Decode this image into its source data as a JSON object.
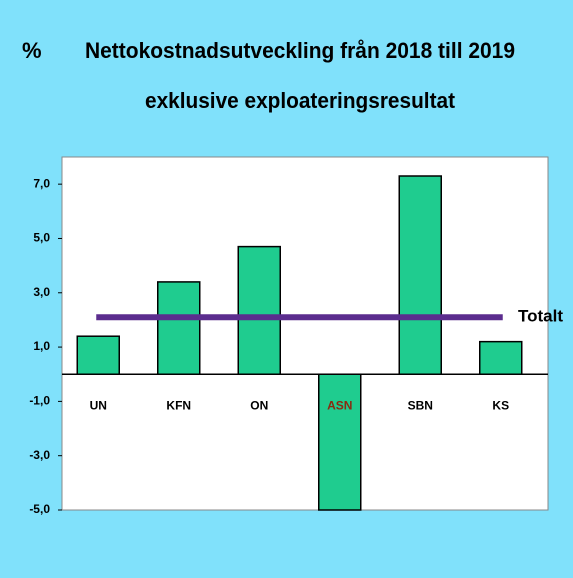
{
  "chart_data": {
    "type": "bar",
    "title": "Nettokostnadsutveckling från 2018 till 2019",
    "subtitle": "exklusive exploateringsresultat",
    "y_label": "%",
    "categories": [
      "UN",
      "KFN",
      "ON",
      "ASN",
      "SBN",
      "KS"
    ],
    "category_label_colors": [
      "#000000",
      "#000000",
      "#000000",
      "#8b2a10",
      "#000000",
      "#000000"
    ],
    "values": [
      1.4,
      3.4,
      4.7,
      -5.0,
      7.3,
      1.2
    ],
    "color": "#1fcc8f",
    "reference_line": {
      "label": "Totalt",
      "value": 2.1,
      "color": "#5b2d8e"
    },
    "ylim": [
      -5,
      8
    ],
    "yticks": [
      {
        "value": 7,
        "label": "7,0"
      },
      {
        "value": 5,
        "label": "5,0"
      },
      {
        "value": 3,
        "label": "3,0"
      },
      {
        "value": 1,
        "label": "1,0"
      },
      {
        "value": -1,
        "label": "-1,0"
      },
      {
        "value": -3,
        "label": "-3,0"
      },
      {
        "value": -5,
        "label": "-5,0"
      }
    ],
    "grid": false
  }
}
